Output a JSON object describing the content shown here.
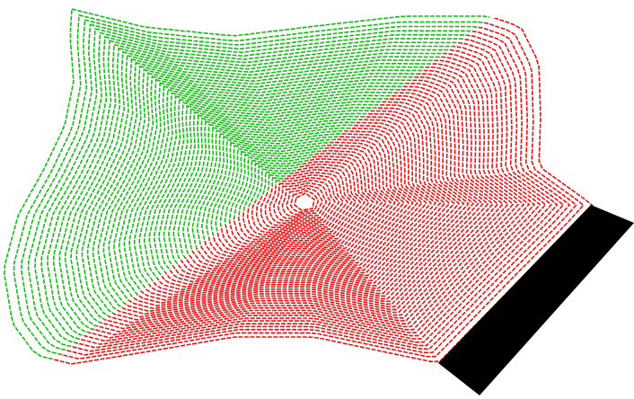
{
  "figure": {
    "kind": "toolpath-surface-wireframe",
    "background_color": "#ffffff",
    "regions": [
      {
        "name": "green-region",
        "color": "#10c010"
      },
      {
        "name": "red-region",
        "color": "#ee1010"
      },
      {
        "name": "black-region",
        "color": "#000000"
      }
    ]
  }
}
